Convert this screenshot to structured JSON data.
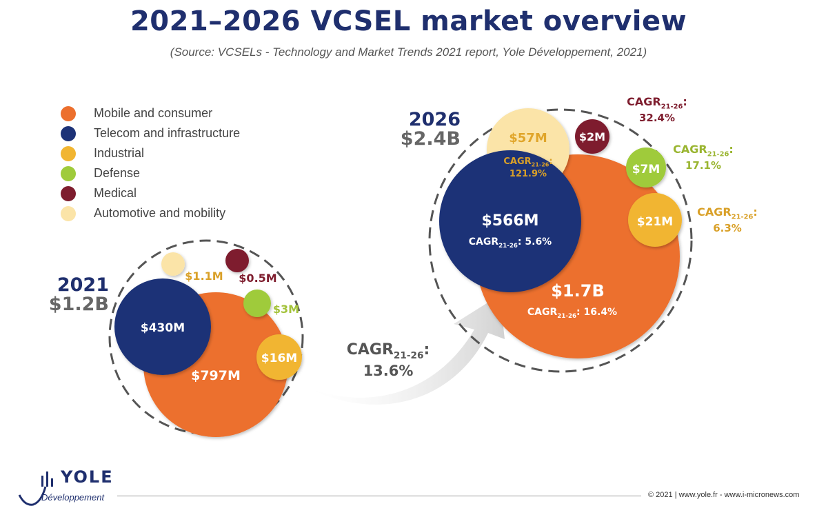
{
  "title": "2021–2026 VCSEL market overview",
  "subtitle": "(Source: VCSELs - Technology and Market Trends 2021 report, Yole Développement, 2021)",
  "legend": [
    {
      "label": "Mobile and consumer",
      "color": "#ec6f2d"
    },
    {
      "label": "Telecom and infrastructure",
      "color": "#1d3277"
    },
    {
      "label": "Industrial",
      "color": "#f1b531"
    },
    {
      "label": "Defense",
      "color": "#9fcb3b"
    },
    {
      "label": "Medical",
      "color": "#7e1d2e"
    },
    {
      "label": "Automotive and mobility",
      "color": "#fbe4a8"
    }
  ],
  "chart_data": {
    "type": "bubble",
    "unit": "USD",
    "groups": [
      {
        "year": "2021",
        "total_label": "$1.2B",
        "total": 1200,
        "segments": [
          {
            "name": "Mobile and consumer",
            "value": 797,
            "label": "$797M"
          },
          {
            "name": "Telecom and infrastructure",
            "value": 430,
            "label": "$430M"
          },
          {
            "name": "Industrial",
            "value": 16,
            "label": "$16M"
          },
          {
            "name": "Defense",
            "value": 3,
            "label": "$3M"
          },
          {
            "name": "Medical",
            "value": 0.5,
            "label": "$0.5M"
          },
          {
            "name": "Automotive and mobility",
            "value": 1.1,
            "label": "$1.1M"
          }
        ]
      },
      {
        "year": "2026",
        "total_label": "$2.4B",
        "total": 2400,
        "segments": [
          {
            "name": "Mobile and consumer",
            "value": 1700,
            "label": "$1.7B",
            "cagr_sub": "21-26",
            "cagr_value": "16.4%"
          },
          {
            "name": "Telecom and infrastructure",
            "value": 566,
            "label": "$566M",
            "cagr_sub": "21-26",
            "cagr_value": "5.6%"
          },
          {
            "name": "Industrial",
            "value": 21,
            "label": "$21M",
            "cagr_sub": "21-26",
            "cagr_value": "6.3%"
          },
          {
            "name": "Defense",
            "value": 7,
            "label": "$7M",
            "cagr_sub": "21-26",
            "cagr_value": "17.1%"
          },
          {
            "name": "Medical",
            "value": 2,
            "label": "$2M",
            "cagr_sub": "21-26",
            "cagr_value": "32.4%"
          },
          {
            "name": "Automotive and mobility",
            "value": 57,
            "label": "$57M",
            "cagr_sub": "21-26",
            "cagr_value": "121.9%"
          }
        ]
      }
    ],
    "overall_cagr": {
      "prefix": "CAGR",
      "sub": "21-26",
      "suffix": ":",
      "value": "13.6%"
    }
  },
  "cagr_prefix": "CAGR",
  "cagr_colon": ":",
  "footer": {
    "brand": "YOLE",
    "brand_sub": "Développement",
    "text": "© 2021 | www.yole.fr - www.i-micronews.com"
  }
}
